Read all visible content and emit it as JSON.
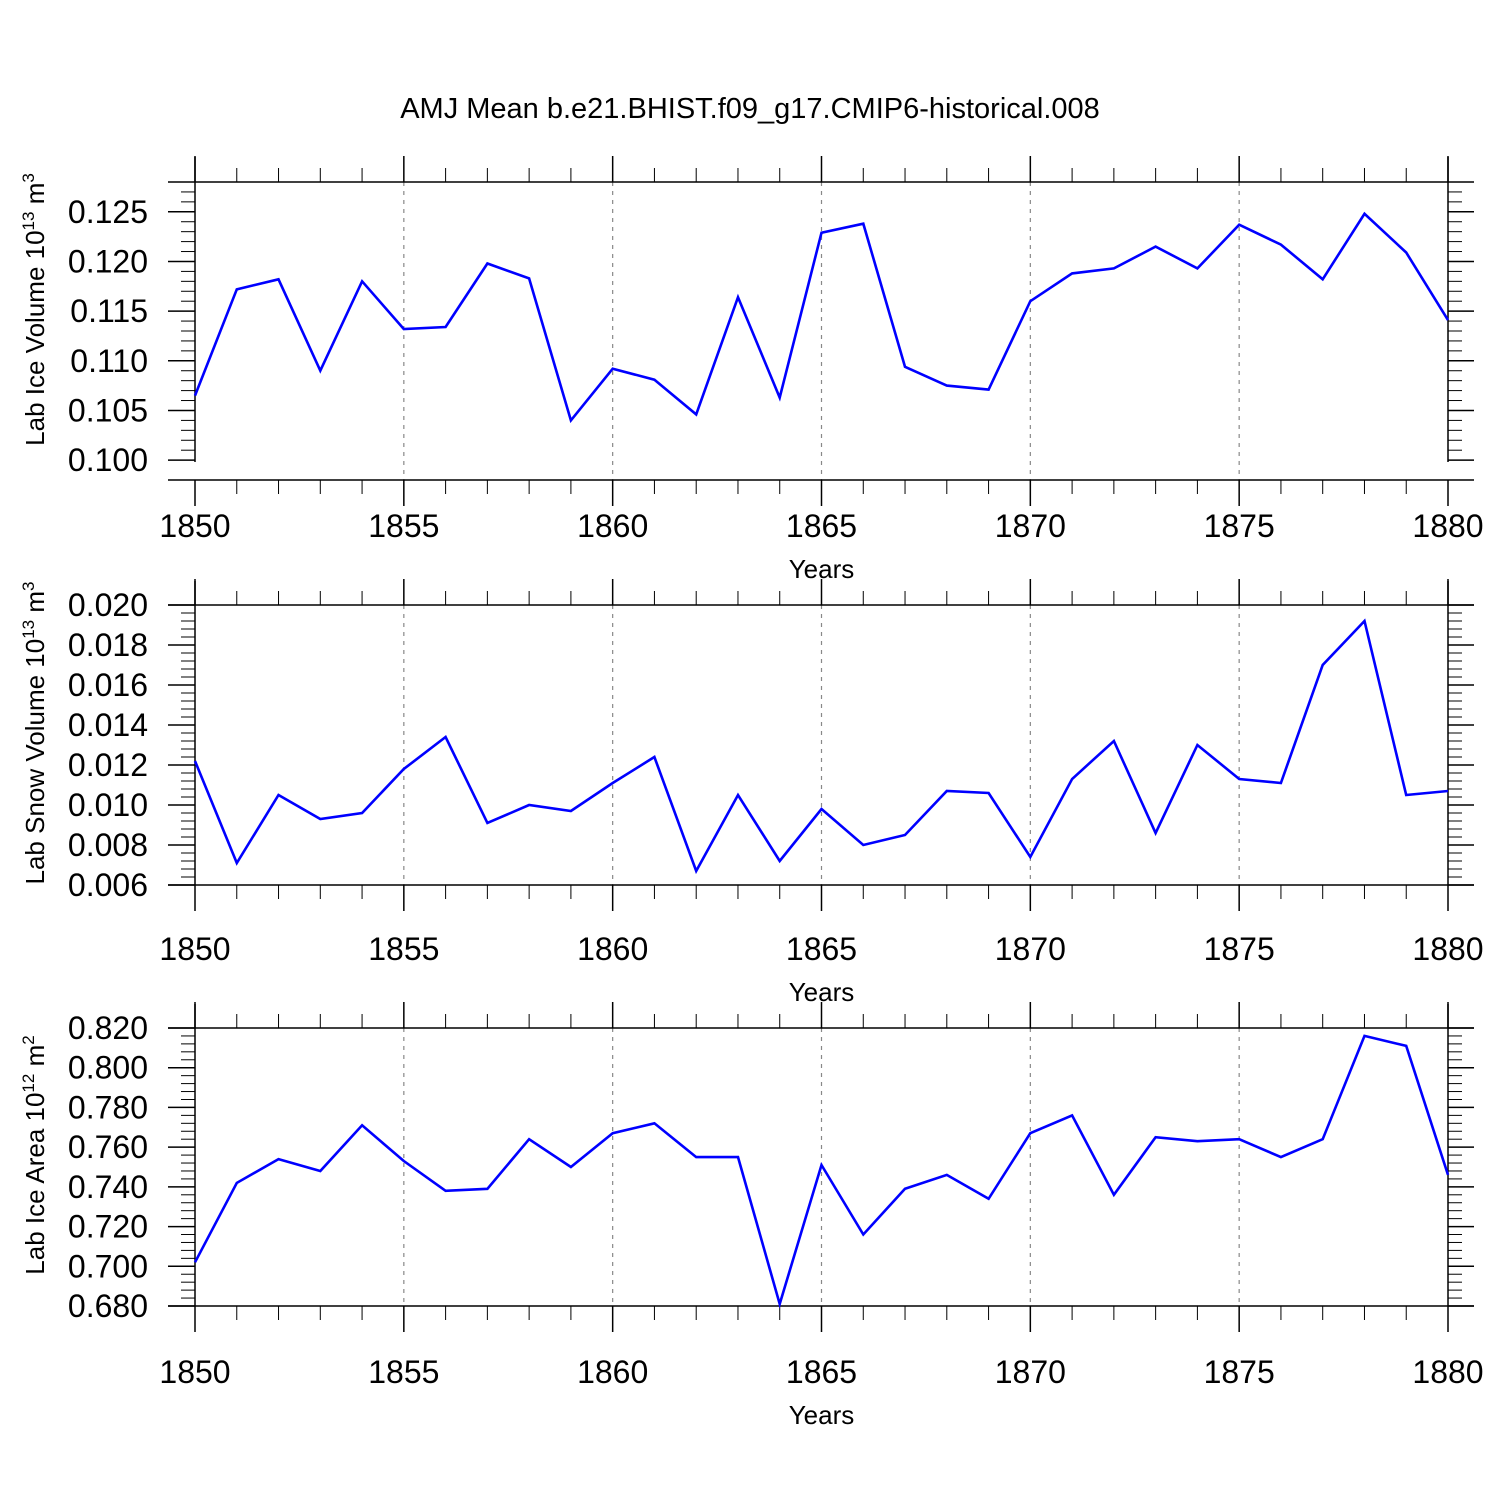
{
  "figure": {
    "title": "AMJ Mean b.e21.BHIST.f09_g17.CMIP6-historical.008"
  },
  "chart_data": [
    {
      "type": "line",
      "title": "",
      "xlabel": "Years",
      "ylabel_main": "Lab Ice Volume 10",
      "ylabel_exp1": "13",
      "ylabel_unit": " m",
      "ylabel_exp2": "3",
      "xlim": [
        1850,
        1880
      ],
      "ylim": [
        0.098,
        0.128
      ],
      "xticks": [
        1850,
        1855,
        1860,
        1865,
        1870,
        1875,
        1880
      ],
      "xtick_labels": [
        "1850",
        "1855",
        "1860",
        "1865",
        "1870",
        "1875",
        "1880"
      ],
      "yticks": [
        0.1,
        0.105,
        0.11,
        0.115,
        0.12,
        0.125
      ],
      "ytick_labels": [
        "0.100",
        "0.105",
        "0.110",
        "0.115",
        "0.120",
        "0.125"
      ],
      "y_minor_step": 0.001,
      "grid": "vertical dashed at major x ticks",
      "color": "#0000ff",
      "x": [
        1850,
        1851,
        1852,
        1853,
        1854,
        1855,
        1856,
        1857,
        1858,
        1859,
        1860,
        1861,
        1862,
        1863,
        1864,
        1865,
        1866,
        1867,
        1868,
        1869,
        1870,
        1871,
        1872,
        1873,
        1874,
        1875,
        1876,
        1877,
        1878,
        1879,
        1880
      ],
      "values": [
        0.1065,
        0.1172,
        0.1182,
        0.109,
        0.118,
        0.1132,
        0.1134,
        0.1198,
        0.1183,
        0.104,
        0.1092,
        0.1081,
        0.1046,
        0.1164,
        0.1063,
        0.1229,
        0.1238,
        0.1094,
        0.1075,
        0.1071,
        0.116,
        0.1188,
        0.1193,
        0.1215,
        0.1193,
        0.1237,
        0.1217,
        0.1182,
        0.1248,
        0.1209,
        0.1141
      ]
    },
    {
      "type": "line",
      "title": "",
      "xlabel": "Years",
      "ylabel_main": "Lab Snow Volume 10",
      "ylabel_exp1": "13",
      "ylabel_unit": " m",
      "ylabel_exp2": "3",
      "xlim": [
        1850,
        1880
      ],
      "ylim": [
        0.006,
        0.02
      ],
      "xticks": [
        1850,
        1855,
        1860,
        1865,
        1870,
        1875,
        1880
      ],
      "xtick_labels": [
        "1850",
        "1855",
        "1860",
        "1865",
        "1870",
        "1875",
        "1880"
      ],
      "yticks": [
        0.006,
        0.008,
        0.01,
        0.012,
        0.014,
        0.016,
        0.018,
        0.02
      ],
      "ytick_labels": [
        "0.006",
        "0.008",
        "0.010",
        "0.012",
        "0.014",
        "0.016",
        "0.018",
        "0.020"
      ],
      "y_minor_step": 0.0004,
      "grid": "vertical dashed at major x ticks",
      "color": "#0000ff",
      "x": [
        1850,
        1851,
        1852,
        1853,
        1854,
        1855,
        1856,
        1857,
        1858,
        1859,
        1860,
        1861,
        1862,
        1863,
        1864,
        1865,
        1866,
        1867,
        1868,
        1869,
        1870,
        1871,
        1872,
        1873,
        1874,
        1875,
        1876,
        1877,
        1878,
        1879,
        1880
      ],
      "values": [
        0.0122,
        0.0071,
        0.0105,
        0.0093,
        0.0096,
        0.0118,
        0.0134,
        0.0091,
        0.01,
        0.0097,
        0.0111,
        0.0124,
        0.0067,
        0.0105,
        0.0072,
        0.0098,
        0.008,
        0.0085,
        0.0107,
        0.0106,
        0.0074,
        0.0113,
        0.0132,
        0.0086,
        0.013,
        0.0113,
        0.0111,
        0.017,
        0.0192,
        0.0105,
        0.0107
      ]
    },
    {
      "type": "line",
      "title": "",
      "xlabel": "Years",
      "ylabel_main": "Lab Ice Area 10",
      "ylabel_exp1": "12",
      "ylabel_unit": " m",
      "ylabel_exp2": "2",
      "xlim": [
        1850,
        1880
      ],
      "ylim": [
        0.68,
        0.82
      ],
      "xticks": [
        1850,
        1855,
        1860,
        1865,
        1870,
        1875,
        1880
      ],
      "xtick_labels": [
        "1850",
        "1855",
        "1860",
        "1865",
        "1870",
        "1875",
        "1880"
      ],
      "yticks": [
        0.68,
        0.7,
        0.72,
        0.74,
        0.76,
        0.78,
        0.8,
        0.82
      ],
      "ytick_labels": [
        "0.680",
        "0.700",
        "0.720",
        "0.740",
        "0.760",
        "0.780",
        "0.800",
        "0.820"
      ],
      "y_minor_step": 0.004,
      "grid": "vertical dashed at major x ticks",
      "color": "#0000ff",
      "x": [
        1850,
        1851,
        1852,
        1853,
        1854,
        1855,
        1856,
        1857,
        1858,
        1859,
        1860,
        1861,
        1862,
        1863,
        1864,
        1865,
        1866,
        1867,
        1868,
        1869,
        1870,
        1871,
        1872,
        1873,
        1874,
        1875,
        1876,
        1877,
        1878,
        1879,
        1880
      ],
      "values": [
        0.702,
        0.742,
        0.754,
        0.748,
        0.771,
        0.753,
        0.738,
        0.739,
        0.764,
        0.75,
        0.767,
        0.772,
        0.755,
        0.755,
        0.681,
        0.751,
        0.716,
        0.739,
        0.746,
        0.734,
        0.767,
        0.776,
        0.736,
        0.765,
        0.763,
        0.764,
        0.755,
        0.764,
        0.816,
        0.811,
        0.746
      ]
    }
  ]
}
